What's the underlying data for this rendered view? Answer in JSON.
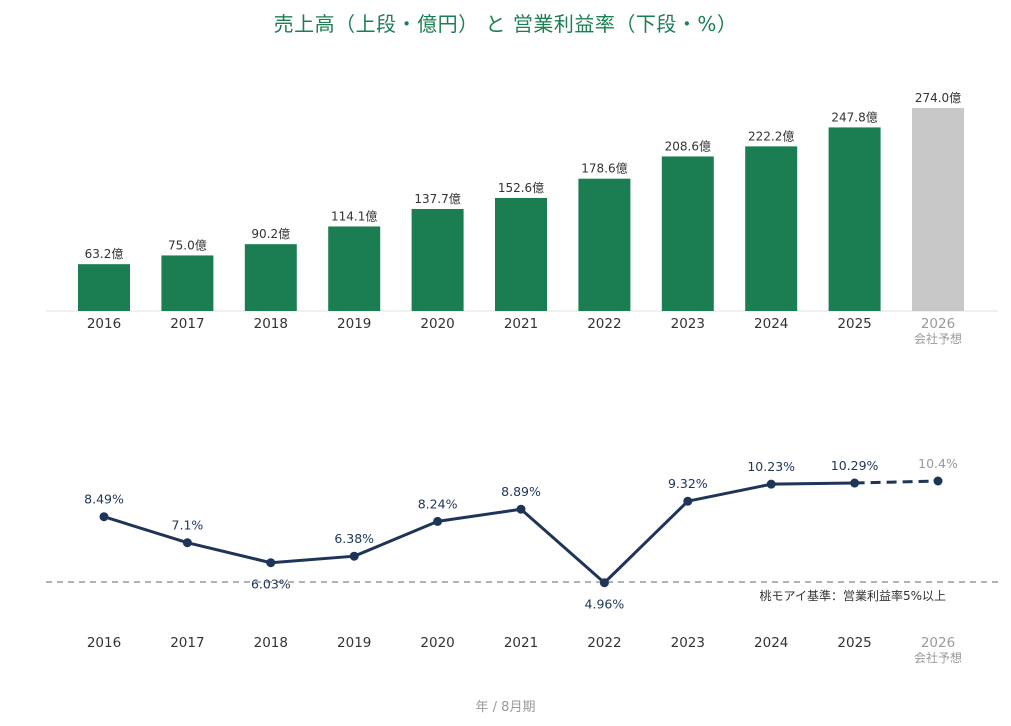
{
  "title": "売上高（上段・億円） と 営業利益率（下段・%）",
  "footer": "年 / 8月期",
  "forecast_label": "会社予想",
  "threshold_label": "桃モアイ基準：営業利益率5%以上",
  "colors": {
    "title": "#1b7f52",
    "bar": "#1b7e53",
    "forecast_bar": "#c8c8c8",
    "line": "#1e3557",
    "threshold": "#9a9a9a",
    "label": "#333333",
    "muted": "#9a9a9a"
  },
  "chart_data": [
    {
      "type": "bar",
      "title": "売上高（上段・億円）",
      "categories": [
        "2016",
        "2017",
        "2018",
        "2019",
        "2020",
        "2021",
        "2022",
        "2023",
        "2024",
        "2025",
        "2026"
      ],
      "values": [
        63.2,
        75.0,
        90.2,
        114.1,
        137.7,
        152.6,
        178.6,
        208.6,
        222.2,
        247.8,
        274.0
      ],
      "data_labels": [
        "63.2億",
        "75.0億",
        "90.2億",
        "114.1億",
        "137.7億",
        "152.6億",
        "178.6億",
        "208.6億",
        "222.2億",
        "247.8億",
        "274.0億"
      ],
      "forecast": [
        false,
        false,
        false,
        false,
        false,
        false,
        false,
        false,
        false,
        false,
        true
      ],
      "ylim": [
        0,
        274
      ]
    },
    {
      "type": "line",
      "title": "営業利益率（下段・%）",
      "categories": [
        "2016",
        "2017",
        "2018",
        "2019",
        "2020",
        "2021",
        "2022",
        "2023",
        "2024",
        "2025",
        "2026"
      ],
      "values": [
        8.49,
        7.1,
        6.03,
        6.38,
        8.24,
        8.89,
        4.96,
        9.32,
        10.23,
        10.29,
        10.4
      ],
      "data_labels": [
        "8.49%",
        "7.1%",
        "6.03%",
        "6.38%",
        "8.24%",
        "8.89%",
        "4.96%",
        "9.32%",
        "10.23%",
        "10.29%",
        "10.4%"
      ],
      "forecast": [
        false,
        false,
        false,
        false,
        false,
        false,
        false,
        false,
        false,
        false,
        true
      ],
      "threshold": 5
    }
  ]
}
